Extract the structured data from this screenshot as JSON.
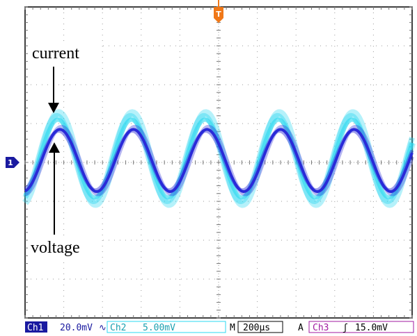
{
  "chart_data": {
    "type": "line",
    "title": "",
    "xlabel": "",
    "ylabel": "",
    "grid": true,
    "x_divisions": 10,
    "y_divisions": 8,
    "x_unit": "div",
    "y_unit": "div",
    "xlim": [
      0,
      10
    ],
    "ylim": [
      -4,
      4
    ],
    "series": [
      {
        "name": "current",
        "color": "#2bd8f0",
        "amplitude_div": 1.0,
        "offset_div": 0.1,
        "period_div": 1.9,
        "peak_x_div": 0.85
      },
      {
        "name": "voltage",
        "color": "#2a2ad8",
        "amplitude_div": 0.8,
        "offset_div": 0.05,
        "period_div": 1.9,
        "peak_x_div": 0.9
      }
    ],
    "annotations": [
      {
        "text": "current",
        "points_to": "current"
      },
      {
        "text": "voltage",
        "points_to": "voltage"
      }
    ],
    "markers": {
      "trigger": "T",
      "channel": "1"
    }
  },
  "status_bar": {
    "ch1_label": "Ch1",
    "ch1_scale": "20.0mV",
    "ch1_coupling": "∿",
    "ch2_label": "Ch2",
    "ch2_scale": "5.00mV",
    "timebase_label": "M",
    "timebase_value": "200µs",
    "trigger_mode": "A",
    "trigger_source": "Ch3",
    "trigger_slope": "ʃ",
    "trigger_level": "15.0mV"
  },
  "colors": {
    "current": "#2bd8f0",
    "voltage": "#2a2ad8",
    "ch1_badge": "#1a1aa0",
    "ch2_text": "#1aa0b0",
    "trigger_marker": "#f07818",
    "ch3_text": "#a01aa0"
  }
}
